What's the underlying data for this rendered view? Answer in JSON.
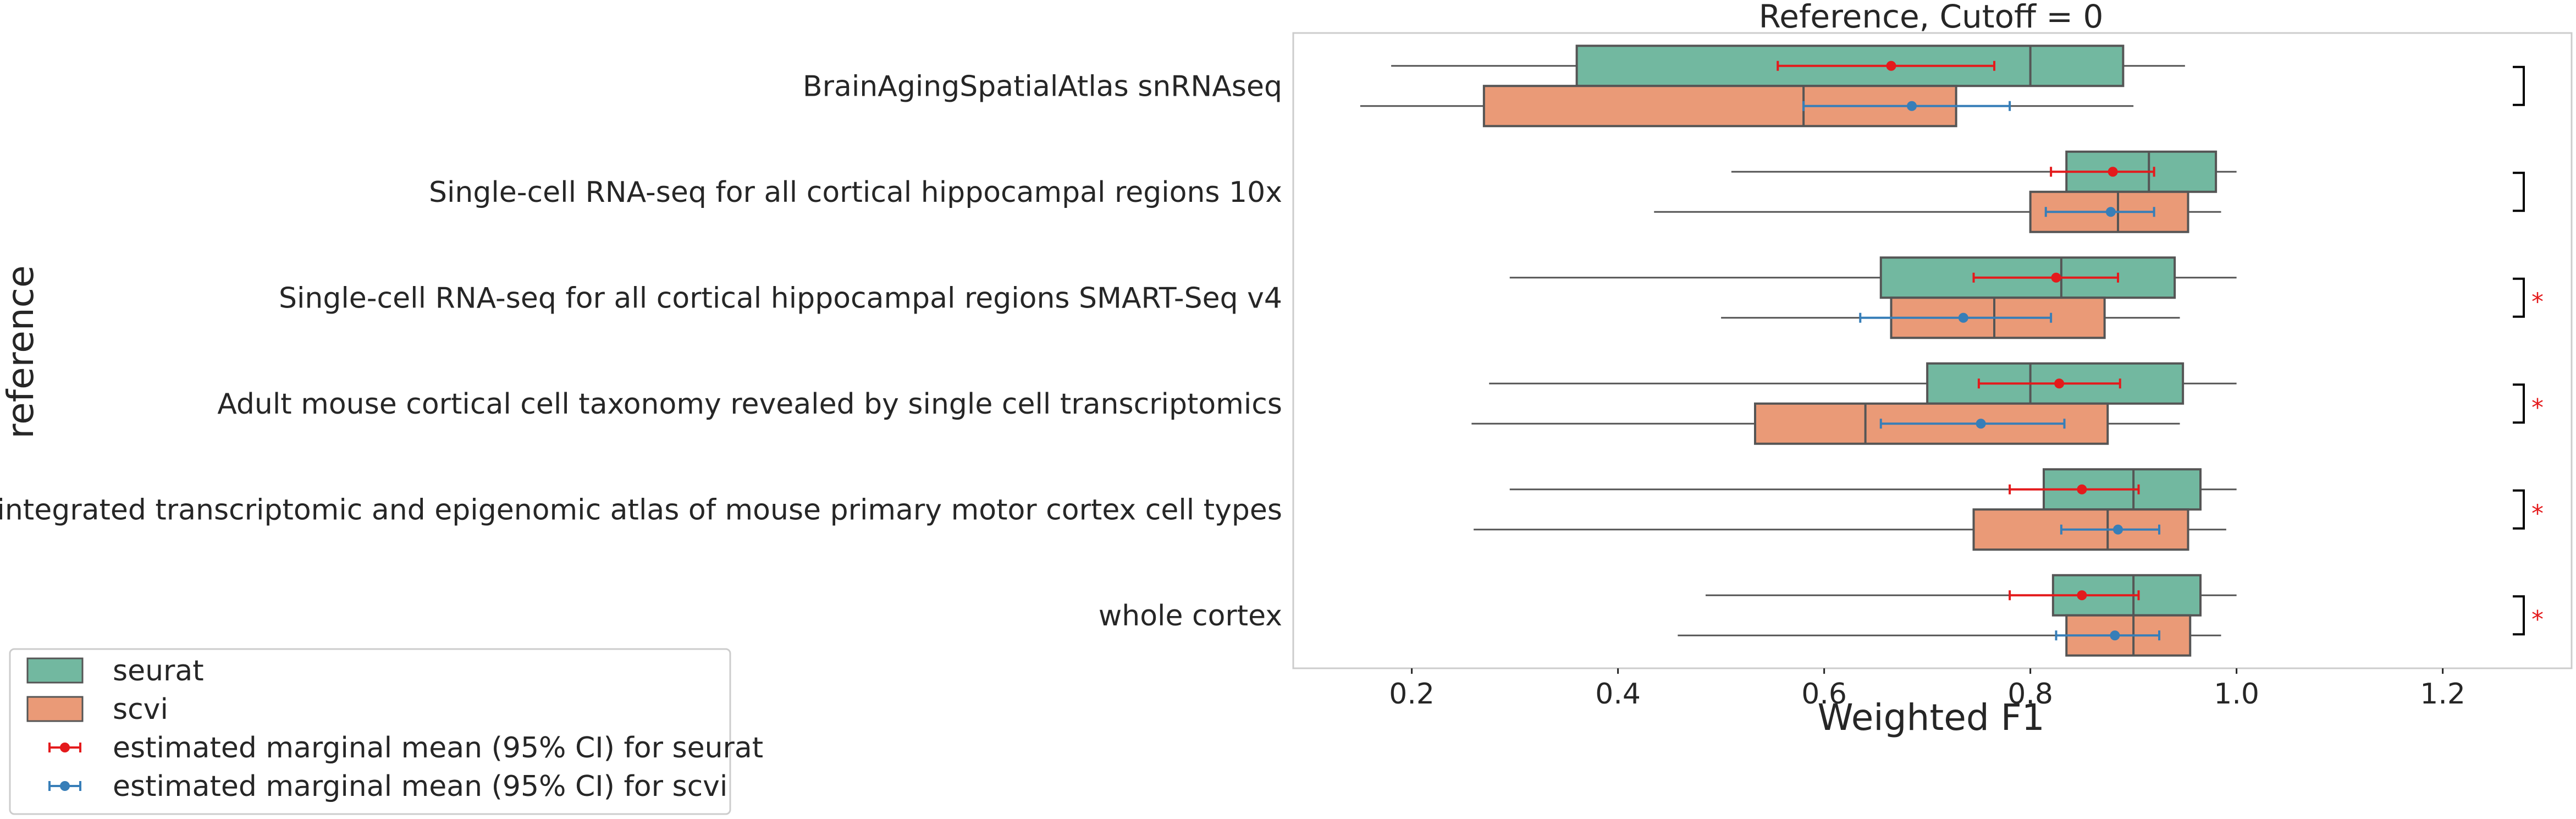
{
  "chart_data": {
    "type": "box",
    "title": "Reference, Cutoff = 0",
    "xlabel": "Weighted F1",
    "ylabel": "reference",
    "xlim": [
      0.085,
      1.325
    ],
    "xticks": [
      "0.2",
      "0.4",
      "0.6",
      "0.8",
      "1.0",
      "1.2"
    ],
    "categories": [
      "BrainAgingSpatialAtlas snRNAseq",
      "Single-cell RNA-seq for all cortical  hippocampal regions 10x",
      "Single-cell RNA-seq for all cortical  hippocampal regions SMART-Seq v4",
      "Adult mouse cortical cell taxonomy revealed by single cell transcriptomics",
      "An integrated transcriptomic and epigenomic atlas of mouse primary motor cortex cell types",
      "whole cortex"
    ],
    "series": [
      {
        "name": "seurat",
        "color": "#72b8a0",
        "boxes": [
          {
            "whislo": 0.18,
            "q1": 0.36,
            "med": 0.8,
            "q3": 0.89,
            "whishi": 0.95
          },
          {
            "whislo": 0.51,
            "q1": 0.835,
            "med": 0.915,
            "q3": 0.98,
            "whishi": 1.0
          },
          {
            "whislo": 0.295,
            "q1": 0.655,
            "med": 0.83,
            "q3": 0.94,
            "whishi": 1.0
          },
          {
            "whislo": 0.275,
            "q1": 0.7,
            "med": 0.8,
            "q3": 0.948,
            "whishi": 1.0
          },
          {
            "whislo": 0.295,
            "q1": 0.813,
            "med": 0.9,
            "q3": 0.965,
            "whishi": 1.0
          },
          {
            "whislo": 0.485,
            "q1": 0.822,
            "med": 0.9,
            "q3": 0.965,
            "whishi": 1.0
          }
        ],
        "emm": [
          {
            "mean": 0.665,
            "lo": 0.555,
            "hi": 0.765
          },
          {
            "mean": 0.88,
            "lo": 0.82,
            "hi": 0.92
          },
          {
            "mean": 0.825,
            "lo": 0.745,
            "hi": 0.885
          },
          {
            "mean": 0.828,
            "lo": 0.75,
            "hi": 0.887
          },
          {
            "mean": 0.85,
            "lo": 0.78,
            "hi": 0.905
          },
          {
            "mean": 0.85,
            "lo": 0.78,
            "hi": 0.905
          }
        ]
      },
      {
        "name": "scvi",
        "color": "#ea9a77",
        "boxes": [
          {
            "whislo": 0.15,
            "q1": 0.27,
            "med": 0.58,
            "q3": 0.728,
            "whishi": 0.9
          },
          {
            "whislo": 0.435,
            "q1": 0.8,
            "med": 0.885,
            "q3": 0.953,
            "whishi": 0.985
          },
          {
            "whislo": 0.5,
            "q1": 0.665,
            "med": 0.765,
            "q3": 0.872,
            "whishi": 0.945
          },
          {
            "whislo": 0.258,
            "q1": 0.533,
            "med": 0.64,
            "q3": 0.875,
            "whishi": 0.945
          },
          {
            "whislo": 0.26,
            "q1": 0.745,
            "med": 0.875,
            "q3": 0.953,
            "whishi": 0.99
          },
          {
            "whislo": 0.458,
            "q1": 0.835,
            "med": 0.9,
            "q3": 0.955,
            "whishi": 0.985
          }
        ],
        "emm": [
          {
            "mean": 0.685,
            "lo": 0.58,
            "hi": 0.78
          },
          {
            "mean": 0.878,
            "lo": 0.815,
            "hi": 0.92
          },
          {
            "mean": 0.735,
            "lo": 0.635,
            "hi": 0.82
          },
          {
            "mean": 0.752,
            "lo": 0.655,
            "hi": 0.833
          },
          {
            "mean": 0.885,
            "lo": 0.83,
            "hi": 0.925
          },
          {
            "mean": 0.882,
            "lo": 0.825,
            "hi": 0.925
          }
        ]
      }
    ],
    "emm_colors": {
      "seurat": "#e41a1c",
      "scvi": "#377eb8"
    },
    "significance": [
      "",
      "",
      "*",
      "*",
      "*",
      "*"
    ],
    "grid": false,
    "legend_position": "lower-left",
    "legend": [
      {
        "label": "seurat",
        "kind": "box",
        "color": "#72b8a0"
      },
      {
        "label": "scvi",
        "kind": "box",
        "color": "#ea9a77"
      },
      {
        "label": "estimated marginal mean (95% CI) for seurat",
        "kind": "errorbar",
        "color": "#e41a1c"
      },
      {
        "label": "estimated marginal mean (95% CI) for scvi",
        "kind": "errorbar",
        "color": "#377eb8"
      }
    ]
  }
}
